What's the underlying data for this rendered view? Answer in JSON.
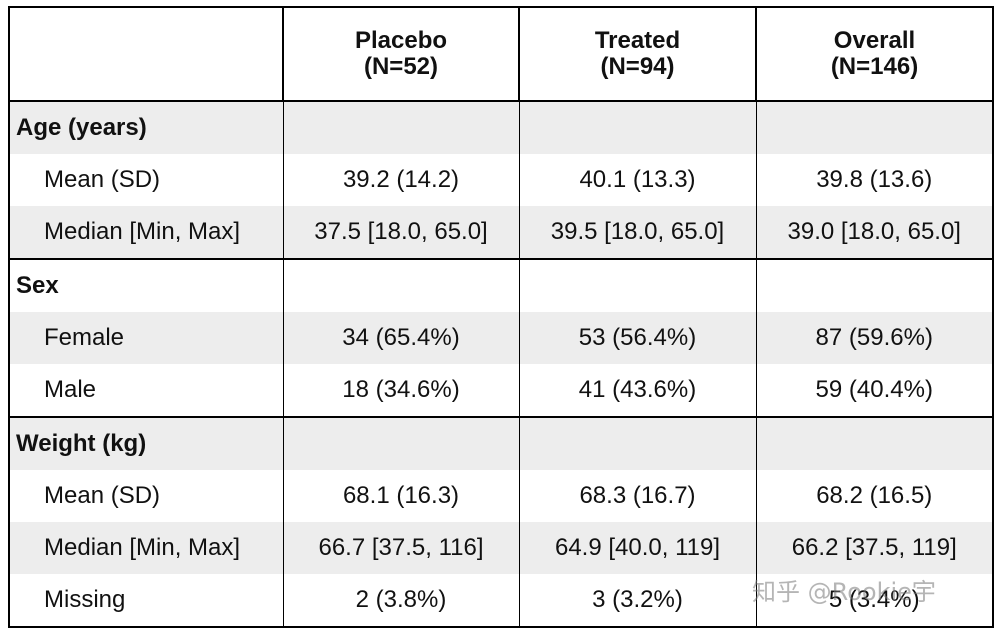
{
  "table": {
    "headers": [
      {
        "line1": "",
        "line2": ""
      },
      {
        "line1": "Placebo",
        "line2": "(N=52)"
      },
      {
        "line1": "Treated",
        "line2": "(N=94)"
      },
      {
        "line1": "Overall",
        "line2": "(N=146)"
      }
    ],
    "groups": [
      {
        "label": "Age (years)",
        "rows": [
          {
            "label": "Mean (SD)",
            "values": [
              "39.2 (14.2)",
              "40.1 (13.3)",
              "39.8 (13.6)"
            ]
          },
          {
            "label": "Median [Min, Max]",
            "values": [
              "37.5 [18.0, 65.0]",
              "39.5 [18.0, 65.0]",
              "39.0 [18.0, 65.0]"
            ]
          }
        ]
      },
      {
        "label": "Sex",
        "rows": [
          {
            "label": "Female",
            "values": [
              "34 (65.4%)",
              "53 (56.4%)",
              "87 (59.6%)"
            ]
          },
          {
            "label": "Male",
            "values": [
              "18 (34.6%)",
              "41 (43.6%)",
              "59 (40.4%)"
            ]
          }
        ]
      },
      {
        "label": "Weight (kg)",
        "rows": [
          {
            "label": "Mean (SD)",
            "values": [
              "68.1 (16.3)",
              "68.3 (16.7)",
              "68.2 (16.5)"
            ]
          },
          {
            "label": "Median [Min, Max]",
            "values": [
              "66.7 [37.5, 116]",
              "64.9 [40.0, 119]",
              "66.2 [37.5, 119]"
            ]
          },
          {
            "label": "Missing",
            "values": [
              "2 (3.8%)",
              "3 (3.2%)",
              "5 (3.4%)"
            ]
          }
        ]
      }
    ]
  },
  "watermark": "知乎 @Rookie宇"
}
